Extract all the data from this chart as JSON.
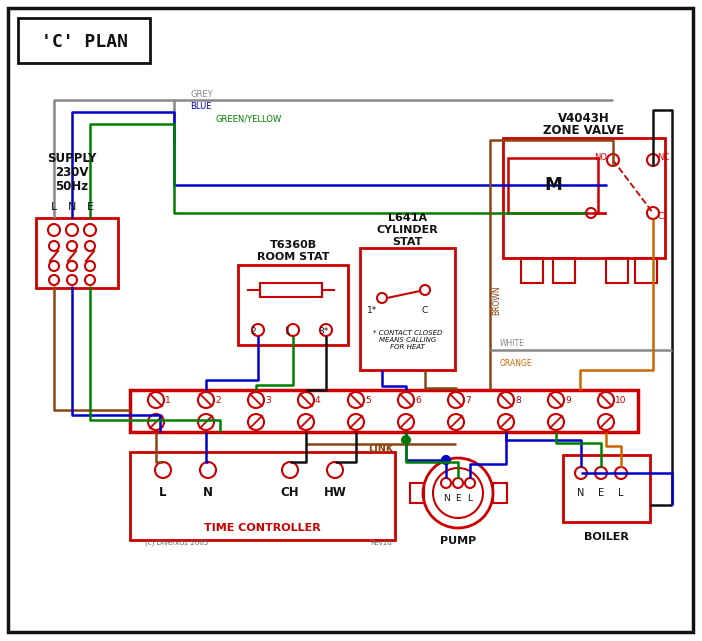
{
  "title": "'C' PLAN",
  "bg": "#ffffff",
  "RED": "#cc0000",
  "BROWN": "#8B4513",
  "BLUE": "#0000cc",
  "GREEN": "#008000",
  "GREY": "#888888",
  "ORANGE": "#cc6600",
  "BLACK": "#111111",
  "zone_valve_l1": "V4043H",
  "zone_valve_l2": "ZONE VALVE",
  "room_stat_l1": "T6360B",
  "room_stat_l2": "ROOM STAT",
  "cyl_stat_l1": "L641A",
  "cyl_stat_l2": "CYLINDER",
  "cyl_stat_l3": "STAT",
  "tc_label": "TIME CONTROLLER",
  "pump_label": "PUMP",
  "boiler_label": "BOILER",
  "link_label": "LINK",
  "lbl_grey": "GREY",
  "lbl_blue": "BLUE",
  "lbl_gy": "GREEN/YELLOW",
  "lbl_brown": "BROWN",
  "lbl_white": "WHITE",
  "lbl_orange": "ORANGE",
  "contact_note": "* CONTACT CLOSED\nMEANS CALLING\nFOR HEAT",
  "copyright": "(c) DiverxOz 2005",
  "revision": "Rev1d"
}
